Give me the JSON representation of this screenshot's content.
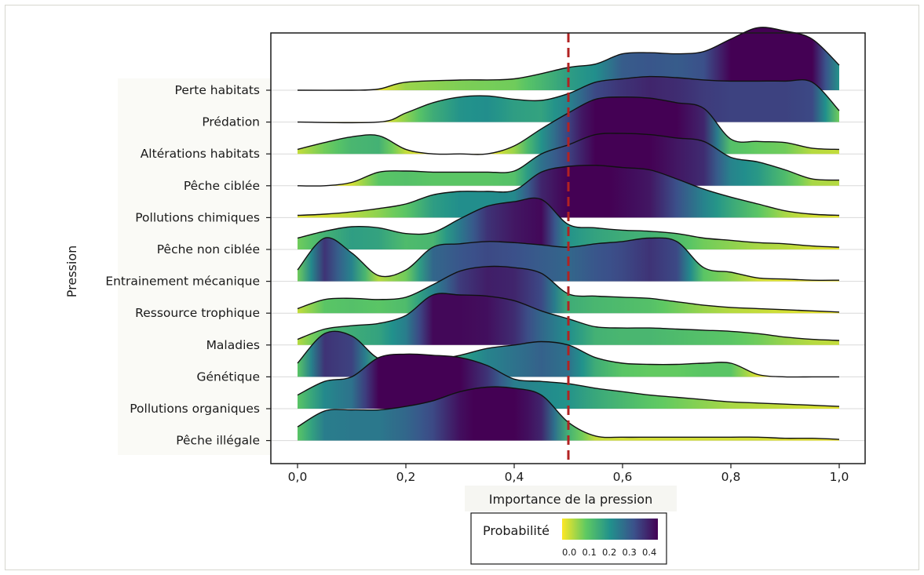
{
  "chart_data": {
    "type": "ridgeline",
    "ylabel": "Pression",
    "xlabel": "Importance de la pression",
    "xlim": [
      0,
      1
    ],
    "xticks": [
      "0,0",
      "0,2",
      "0,4",
      "0,6",
      "0,8",
      "1,0"
    ],
    "reference_line": {
      "x": 0.5,
      "style": "dashed",
      "color": "#b22222"
    },
    "legend": {
      "title": "Probabilité",
      "placement": "bottom-center",
      "ticks": [
        "0.0",
        "0.1",
        "0.2",
        "0.3",
        "0.4"
      ],
      "colormap": [
        "#fde725",
        "#5ec962",
        "#21918c",
        "#3b528b",
        "#440154"
      ]
    },
    "series": [
      {
        "name": "Perte habitats",
        "x": [
          0.0,
          0.1,
          0.15,
          0.2,
          0.3,
          0.4,
          0.5,
          0.55,
          0.6,
          0.65,
          0.7,
          0.75,
          0.8,
          0.85,
          0.9,
          0.95,
          1.0
        ],
        "y": [
          0.0,
          0.0,
          0.01,
          0.07,
          0.09,
          0.1,
          0.2,
          0.23,
          0.32,
          0.33,
          0.32,
          0.34,
          0.45,
          0.55,
          0.52,
          0.45,
          0.22
        ]
      },
      {
        "name": "Prédation",
        "x": [
          0.0,
          0.15,
          0.2,
          0.25,
          0.3,
          0.35,
          0.4,
          0.45,
          0.5,
          0.55,
          0.6,
          0.65,
          0.7,
          0.75,
          0.8,
          0.85,
          0.9,
          0.95,
          1.0
        ],
        "y": [
          0.0,
          0.0,
          0.08,
          0.17,
          0.22,
          0.23,
          0.2,
          0.19,
          0.25,
          0.35,
          0.38,
          0.4,
          0.39,
          0.37,
          0.36,
          0.36,
          0.36,
          0.35,
          0.1
        ]
      },
      {
        "name": "Altérations habitats",
        "x": [
          0.0,
          0.05,
          0.1,
          0.15,
          0.2,
          0.25,
          0.3,
          0.35,
          0.4,
          0.45,
          0.5,
          0.55,
          0.6,
          0.65,
          0.7,
          0.75,
          0.8,
          0.85,
          0.9,
          0.95,
          1.0
        ],
        "y": [
          0.04,
          0.1,
          0.15,
          0.16,
          0.04,
          0.0,
          0.0,
          0.0,
          0.07,
          0.22,
          0.36,
          0.48,
          0.5,
          0.49,
          0.45,
          0.4,
          0.13,
          0.11,
          0.1,
          0.05,
          0.04
        ]
      },
      {
        "name": "Pêche ciblée",
        "x": [
          0.0,
          0.05,
          0.1,
          0.15,
          0.2,
          0.25,
          0.3,
          0.35,
          0.4,
          0.45,
          0.5,
          0.55,
          0.6,
          0.65,
          0.7,
          0.75,
          0.8,
          0.85,
          0.9,
          0.95,
          1.0
        ],
        "y": [
          0.0,
          0.0,
          0.03,
          0.12,
          0.13,
          0.12,
          0.12,
          0.12,
          0.13,
          0.28,
          0.36,
          0.45,
          0.46,
          0.45,
          0.42,
          0.39,
          0.25,
          0.21,
          0.14,
          0.06,
          0.05
        ]
      },
      {
        "name": "Pollutions chimiques",
        "x": [
          0.0,
          0.05,
          0.1,
          0.15,
          0.2,
          0.25,
          0.3,
          0.35,
          0.4,
          0.45,
          0.5,
          0.55,
          0.6,
          0.65,
          0.7,
          0.75,
          0.8,
          0.85,
          0.9,
          0.95,
          1.0
        ],
        "y": [
          0.02,
          0.03,
          0.05,
          0.08,
          0.12,
          0.2,
          0.23,
          0.23,
          0.24,
          0.4,
          0.45,
          0.46,
          0.44,
          0.42,
          0.34,
          0.25,
          0.18,
          0.12,
          0.06,
          0.03,
          0.02
        ]
      },
      {
        "name": "Pêche non ciblée",
        "x": [
          0.0,
          0.05,
          0.1,
          0.15,
          0.2,
          0.25,
          0.3,
          0.35,
          0.4,
          0.45,
          0.5,
          0.55,
          0.6,
          0.65,
          0.7,
          0.75,
          0.8,
          0.85,
          0.9,
          0.95,
          1.0
        ],
        "y": [
          0.1,
          0.16,
          0.2,
          0.19,
          0.14,
          0.15,
          0.27,
          0.38,
          0.42,
          0.44,
          0.22,
          0.19,
          0.17,
          0.16,
          0.14,
          0.1,
          0.08,
          0.06,
          0.05,
          0.03,
          0.02
        ]
      },
      {
        "name": "Entrainement mécanique",
        "x": [
          0.0,
          0.05,
          0.1,
          0.15,
          0.2,
          0.25,
          0.3,
          0.35,
          0.4,
          0.45,
          0.5,
          0.55,
          0.6,
          0.65,
          0.7,
          0.75,
          0.8,
          0.85,
          0.9,
          0.95,
          1.0
        ],
        "y": [
          0.1,
          0.38,
          0.25,
          0.05,
          0.1,
          0.3,
          0.33,
          0.35,
          0.34,
          0.32,
          0.3,
          0.33,
          0.35,
          0.38,
          0.35,
          0.12,
          0.08,
          0.03,
          0.02,
          0.01,
          0.01
        ]
      },
      {
        "name": "Ressource trophique",
        "x": [
          0.0,
          0.05,
          0.1,
          0.15,
          0.2,
          0.25,
          0.3,
          0.35,
          0.4,
          0.45,
          0.5,
          0.55,
          0.6,
          0.65,
          0.7,
          0.75,
          0.8,
          0.85,
          0.9,
          0.95,
          1.0
        ],
        "y": [
          0.04,
          0.12,
          0.13,
          0.12,
          0.14,
          0.25,
          0.37,
          0.41,
          0.4,
          0.35,
          0.17,
          0.15,
          0.14,
          0.13,
          0.1,
          0.07,
          0.05,
          0.04,
          0.03,
          0.02,
          0.01
        ]
      },
      {
        "name": "Maladies",
        "x": [
          0.0,
          0.05,
          0.1,
          0.15,
          0.2,
          0.25,
          0.3,
          0.35,
          0.4,
          0.45,
          0.5,
          0.55,
          0.6,
          0.65,
          0.7,
          0.75,
          0.8,
          0.85,
          0.9,
          0.95,
          1.0
        ],
        "y": [
          0.05,
          0.14,
          0.17,
          0.19,
          0.26,
          0.44,
          0.44,
          0.43,
          0.39,
          0.3,
          0.23,
          0.16,
          0.15,
          0.15,
          0.14,
          0.13,
          0.12,
          0.1,
          0.07,
          0.05,
          0.04
        ]
      },
      {
        "name": "Génétique",
        "x": [
          0.0,
          0.05,
          0.1,
          0.15,
          0.2,
          0.25,
          0.3,
          0.35,
          0.4,
          0.45,
          0.5,
          0.55,
          0.6,
          0.65,
          0.7,
          0.75,
          0.8,
          0.85,
          0.9,
          0.95,
          1.0
        ],
        "y": [
          0.12,
          0.38,
          0.36,
          0.16,
          0.15,
          0.15,
          0.19,
          0.25,
          0.28,
          0.31,
          0.28,
          0.17,
          0.12,
          0.11,
          0.11,
          0.12,
          0.12,
          0.02,
          0.0,
          0.0,
          0.0
        ]
      },
      {
        "name": "Pollutions organiques",
        "x": [
          0.0,
          0.05,
          0.1,
          0.15,
          0.2,
          0.25,
          0.3,
          0.35,
          0.4,
          0.45,
          0.5,
          0.55,
          0.6,
          0.65,
          0.7,
          0.75,
          0.8,
          0.85,
          0.9,
          0.95,
          1.0
        ],
        "y": [
          0.12,
          0.24,
          0.28,
          0.45,
          0.48,
          0.47,
          0.45,
          0.38,
          0.26,
          0.24,
          0.22,
          0.18,
          0.15,
          0.12,
          0.1,
          0.08,
          0.06,
          0.05,
          0.04,
          0.03,
          0.02
        ]
      },
      {
        "name": "Pêche illégale",
        "x": [
          0.0,
          0.05,
          0.1,
          0.15,
          0.2,
          0.25,
          0.3,
          0.35,
          0.4,
          0.45,
          0.5,
          0.55,
          0.6,
          0.65,
          0.7,
          0.75,
          0.8,
          0.85,
          0.9,
          0.95,
          1.0
        ],
        "y": [
          0.12,
          0.26,
          0.27,
          0.27,
          0.3,
          0.35,
          0.43,
          0.47,
          0.46,
          0.4,
          0.16,
          0.04,
          0.03,
          0.03,
          0.03,
          0.03,
          0.03,
          0.03,
          0.02,
          0.02,
          0.01
        ]
      }
    ]
  }
}
